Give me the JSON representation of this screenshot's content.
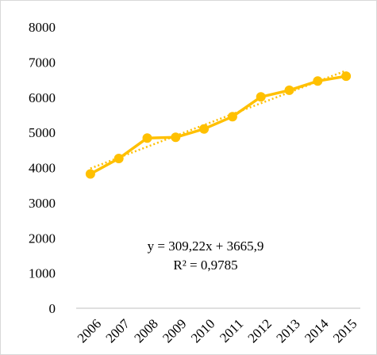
{
  "chart_data": {
    "type": "line",
    "title": "",
    "xlabel": "",
    "ylabel": "",
    "x": [
      "2006",
      "2007",
      "2008",
      "2009",
      "2010",
      "2011",
      "2012",
      "2013",
      "2014",
      "2015"
    ],
    "series": [
      {
        "values": [
          3820,
          4260,
          4840,
          4860,
          5100,
          5450,
          6010,
          6200,
          6460,
          6600
        ],
        "color": "#FFC000",
        "marker": "circle"
      }
    ],
    "trendline": {
      "type": "linear",
      "slope": 309.22,
      "intercept": 3665.9,
      "style": "dotted",
      "color": "#FFC000",
      "equation": "y = 309,22x + 3665,9",
      "r_squared": "R² = 0,9785"
    },
    "ylim": [
      0,
      8000
    ],
    "yticks": [
      "0",
      "1000",
      "2000",
      "3000",
      "4000",
      "5000",
      "6000",
      "7000",
      "8000"
    ],
    "grid": false,
    "legend": "none"
  }
}
